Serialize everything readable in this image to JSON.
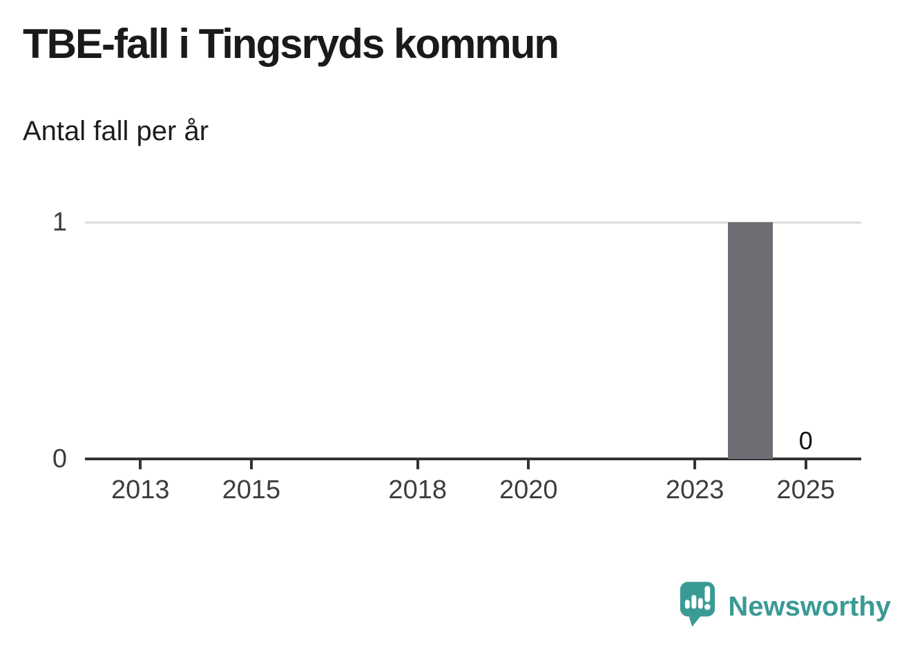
{
  "branding": {
    "logo_text": "Newsworthy",
    "logo_icon": "newsworthy-chart-bubble-icon",
    "brand_color": "#3a9a94"
  },
  "colors": {
    "bar": "#6e6d73",
    "axis": "#333333",
    "gridline": "#dcdcdc",
    "tick_label": "#3d3d3d",
    "title_text": "#1a1a1a",
    "value_label": "#111111"
  },
  "chart_data": {
    "type": "bar",
    "title": "TBE-fall i Tingsryds kommun",
    "subtitle": "Antal fall per år",
    "x": [
      2012,
      2013,
      2014,
      2015,
      2016,
      2017,
      2018,
      2019,
      2020,
      2021,
      2022,
      2023,
      2024,
      2025
    ],
    "values": [
      0,
      0,
      0,
      0,
      0,
      0,
      0,
      0,
      0,
      0,
      0,
      0,
      1,
      0
    ],
    "x_axis": {
      "tick_labels": [
        "2013",
        "2015",
        "2018",
        "2020",
        "2023",
        "2025"
      ],
      "domain_start": 2012,
      "domain_end": 2026
    },
    "y_axis": {
      "ticks": [
        0,
        1
      ],
      "ylim": [
        0,
        1
      ],
      "gridlines": [
        1
      ]
    },
    "annotations": [
      {
        "x": 2025,
        "value": 0,
        "label": "0"
      }
    ],
    "legend": "none",
    "grid": "horizontal-only"
  }
}
